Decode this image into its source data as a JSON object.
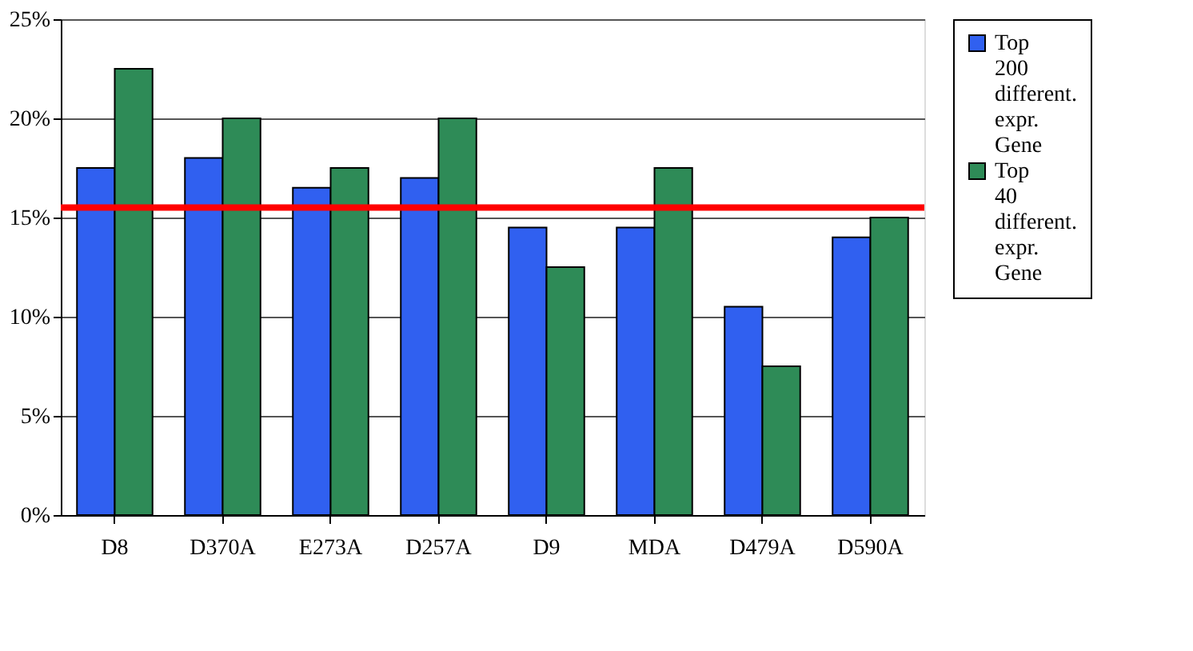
{
  "chart_data": {
    "type": "bar",
    "categories": [
      "D8",
      "D370A",
      "E273A",
      "D257A",
      "D9",
      "MDA",
      "D479A",
      "D590A"
    ],
    "series": [
      {
        "name": "Top 200 different. expr. Gene",
        "color": "#3060f0",
        "values": [
          0.175,
          0.18,
          0.165,
          0.17,
          0.145,
          0.145,
          0.105,
          0.14
        ]
      },
      {
        "name": "Top 40 different. expr. Gene",
        "color": "#2e8b57",
        "values": [
          0.225,
          0.2,
          0.175,
          0.2,
          0.125,
          0.175,
          0.075,
          0.15
        ]
      }
    ],
    "ylim": [
      0,
      0.25
    ],
    "yticks": [
      {
        "value": 0,
        "label": "0%"
      },
      {
        "value": 0.05,
        "label": "5%"
      },
      {
        "value": 0.1,
        "label": "10%"
      },
      {
        "value": 0.15,
        "label": "15%"
      },
      {
        "value": 0.2,
        "label": "20%"
      },
      {
        "value": 0.25,
        "label": "25%"
      }
    ],
    "ref_lines": [
      {
        "axis": "y",
        "value": 0.155,
        "color": "#ff0000"
      }
    ],
    "grid": "y",
    "legend": "right"
  }
}
